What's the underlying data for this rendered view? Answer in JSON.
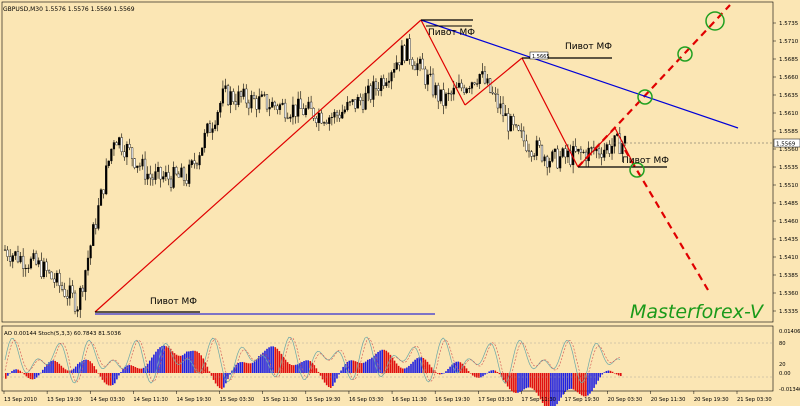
{
  "colors": {
    "background": "#fbe6b4",
    "candle": "#000000",
    "trend_red": "#e00000",
    "trend_blue": "#0000d8",
    "ao_up": "#2020e0",
    "ao_down": "#e01010",
    "stoch_main": "#6ba7a7",
    "stoch_signal": "#d05050",
    "circle": "#20a020",
    "watermark": "#1a9a1a"
  },
  "header": {
    "symbol_info": "GBPUSD,M30  1.5576 1.5576 1.5569 1.5569"
  },
  "price_axis": {
    "ticks": [
      "1.5735",
      "1.5710",
      "1.5685",
      "1.5660",
      "1.5635",
      "1.5610",
      "1.5585",
      "1.5560",
      "1.5535",
      "1.5510",
      "1.5485",
      "1.5460",
      "1.5435",
      "1.5410",
      "1.5385",
      "1.5360",
      "1.5335"
    ],
    "current": "1.5569"
  },
  "time_axis": {
    "labels": [
      "13 Sep 2010",
      "13 Sep 19:30",
      "14 Sep 03:30",
      "14 Sep 11:30",
      "14 Sep 19:30",
      "15 Sep 03:30",
      "15 Sep 11:30",
      "15 Sep 19:30",
      "16 Sep 03:30",
      "16 Sep 11:30",
      "16 Sep 19:30",
      "17 Sep 03:30",
      "17 Sep 11:30",
      "17 Sep 19:30",
      "20 Sep 03:30",
      "20 Sep 11:30",
      "20 Sep 19:30",
      "21 Sep 03:30"
    ]
  },
  "annotations": {
    "pivot_label": "Пивот МФ",
    "box_label": "1.5665",
    "watermark": "Masterforex-V"
  },
  "indicator_panel": {
    "header": "AO 0.00144  Stoch(5,3,3) 60.7843 81.5036",
    "ticks": [
      "0.01406",
      "80",
      "20",
      "0.00",
      "-0.01346"
    ]
  },
  "chart_data": [
    {
      "type": "line",
      "title": "GBPUSD,M30",
      "ylim": [
        1.5335,
        1.5735
      ],
      "x": [
        "13 Sep 2010",
        "13 Sep 19:30",
        "14 Sep 03:30",
        "14 Sep 11:30",
        "14 Sep 19:30",
        "15 Sep 03:30",
        "15 Sep 11:30",
        "15 Sep 19:30",
        "16 Sep 03:30",
        "16 Sep 11:30",
        "16 Sep 19:30",
        "17 Sep 03:30",
        "17 Sep 11:30",
        "17 Sep 19:30",
        "20 Sep 03:30",
        "20 Sep 11:30",
        "20 Sep 19:30",
        "21 Sep 03:30"
      ],
      "series": [
        {
          "values": [
            1.542,
            1.5395,
            1.5345,
            1.558,
            1.552,
            1.552,
            1.5635,
            1.5625,
            1.5615,
            1.5605,
            1.5635,
            1.57,
            1.5625,
            1.5665,
            1.558,
            1.5545,
            1.5555,
            1.557
          ]
        }
      ],
      "pivots": [
        1.5345,
        1.572,
        1.562,
        1.5665,
        1.554
      ]
    },
    {
      "type": "bar",
      "title": "AO 0.00144",
      "ylim": [
        -0.01346,
        0.01406
      ],
      "values": [
        -0.002,
        0.001,
        0.004,
        -0.003,
        0.006,
        0.009,
        -0.004,
        0.008,
        0.005,
        -0.003,
        0.007,
        0.004,
        0.002,
        0.001,
        -0.004,
        -0.011,
        -0.006,
        0.001
      ]
    }
  ]
}
